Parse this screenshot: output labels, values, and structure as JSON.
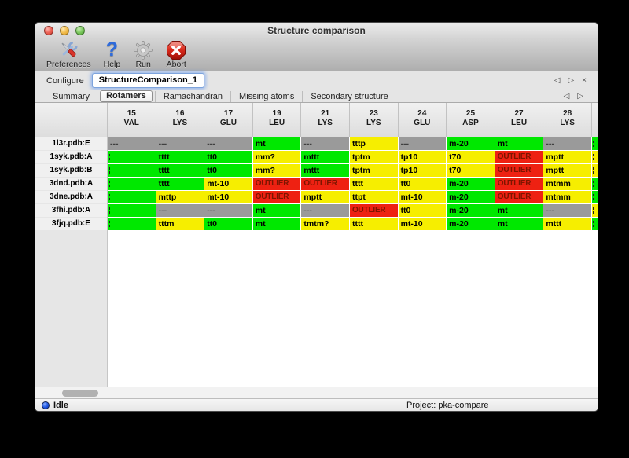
{
  "window": {
    "title": "Structure comparison"
  },
  "toolbar": {
    "items": [
      {
        "label": "Preferences",
        "icon": "preferences-tools-icon",
        "name": "preferences-button"
      },
      {
        "label": "Help",
        "icon": "help-question-icon",
        "name": "help-button"
      },
      {
        "label": "Run",
        "icon": "run-gear-icon",
        "name": "run-button"
      },
      {
        "label": "Abort",
        "icon": "abort-stop-icon",
        "name": "abort-button"
      }
    ]
  },
  "configure": {
    "label": "Configure",
    "value": "StructureComparison_1",
    "nav": {
      "prev": "◁",
      "next": "▷",
      "close": "×"
    }
  },
  "tabs": {
    "items": [
      "Summary",
      "Rotamers",
      "Ramachandran",
      "Missing atoms",
      "Secondary structure"
    ],
    "active": "Rotamers",
    "nav": {
      "prev": "◁",
      "next": "▷"
    }
  },
  "table": {
    "columns": [
      {
        "num": "15",
        "res": "VAL"
      },
      {
        "num": "16",
        "res": "LYS"
      },
      {
        "num": "17",
        "res": "GLU"
      },
      {
        "num": "19",
        "res": "LEU"
      },
      {
        "num": "21",
        "res": "LYS"
      },
      {
        "num": "23",
        "res": "LYS"
      },
      {
        "num": "24",
        "res": "GLU"
      },
      {
        "num": "25",
        "res": "ASP"
      },
      {
        "num": "27",
        "res": "LEU"
      },
      {
        "num": "28",
        "res": "LYS"
      }
    ],
    "legend": {
      "green": "#00e800",
      "yellow": "#f6ee00",
      "gray": "#9a9a9a",
      "red": "#ee2112"
    },
    "rows": [
      {
        "label": "1l3r.pdb:E",
        "cells": [
          {
            "t": "---",
            "c": "gray"
          },
          {
            "t": "---",
            "c": "gray"
          },
          {
            "t": "---",
            "c": "gray"
          },
          {
            "t": "mt",
            "c": "green"
          },
          {
            "t": "---",
            "c": "gray"
          },
          {
            "t": "tttp",
            "c": "yellow"
          },
          {
            "t": "---",
            "c": "gray"
          },
          {
            "t": "m-20",
            "c": "green"
          },
          {
            "t": "mt",
            "c": "green"
          },
          {
            "t": "---",
            "c": "gray"
          }
        ],
        "edge": {
          "t": "",
          "c": "green",
          "clip": true
        }
      },
      {
        "label": "1syk.pdb:A",
        "cells": [
          {
            "t": "",
            "c": "green",
            "clip": true
          },
          {
            "t": "tttt",
            "c": "green"
          },
          {
            "t": "tt0",
            "c": "green"
          },
          {
            "t": "mm?",
            "c": "yellow"
          },
          {
            "t": "mttt",
            "c": "green"
          },
          {
            "t": "tptm",
            "c": "yellow"
          },
          {
            "t": "tp10",
            "c": "yellow"
          },
          {
            "t": "t70",
            "c": "yellow"
          },
          {
            "t": "OUTLIER",
            "c": "red"
          },
          {
            "t": "mptt",
            "c": "yellow"
          }
        ],
        "edge": {
          "t": "",
          "c": "yellow",
          "clip": true
        }
      },
      {
        "label": "1syk.pdb:B",
        "cells": [
          {
            "t": "",
            "c": "green",
            "clip": true
          },
          {
            "t": "tttt",
            "c": "green"
          },
          {
            "t": "tt0",
            "c": "green"
          },
          {
            "t": "mm?",
            "c": "yellow"
          },
          {
            "t": "mttt",
            "c": "green"
          },
          {
            "t": "tptm",
            "c": "yellow"
          },
          {
            "t": "tp10",
            "c": "yellow"
          },
          {
            "t": "t70",
            "c": "yellow"
          },
          {
            "t": "OUTLIER",
            "c": "red"
          },
          {
            "t": "mptt",
            "c": "yellow"
          }
        ],
        "edge": {
          "t": "",
          "c": "yellow",
          "clip": true
        }
      },
      {
        "label": "3dnd.pdb:A",
        "cells": [
          {
            "t": "",
            "c": "green",
            "clip": true
          },
          {
            "t": "tttt",
            "c": "green"
          },
          {
            "t": "mt-10",
            "c": "yellow"
          },
          {
            "t": "OUTLIER",
            "c": "red"
          },
          {
            "t": "OUTLIER",
            "c": "red"
          },
          {
            "t": "tttt",
            "c": "yellow"
          },
          {
            "t": "tt0",
            "c": "yellow"
          },
          {
            "t": "m-20",
            "c": "green"
          },
          {
            "t": "OUTLIER",
            "c": "red"
          },
          {
            "t": "mtmm",
            "c": "yellow"
          }
        ],
        "edge": {
          "t": "",
          "c": "green",
          "clip": true
        }
      },
      {
        "label": "3dne.pdb:A",
        "cells": [
          {
            "t": "",
            "c": "green",
            "clip": true
          },
          {
            "t": "mttp",
            "c": "yellow"
          },
          {
            "t": "mt-10",
            "c": "yellow"
          },
          {
            "t": "OUTLIER",
            "c": "red"
          },
          {
            "t": "mptt",
            "c": "yellow"
          },
          {
            "t": "ttpt",
            "c": "yellow"
          },
          {
            "t": "mt-10",
            "c": "yellow"
          },
          {
            "t": "m-20",
            "c": "green"
          },
          {
            "t": "OUTLIER",
            "c": "red"
          },
          {
            "t": "mtmm",
            "c": "yellow"
          }
        ],
        "edge": {
          "t": "",
          "c": "green",
          "clip": true
        }
      },
      {
        "label": "3fhi.pdb:A",
        "cells": [
          {
            "t": "",
            "c": "green",
            "clip": true
          },
          {
            "t": "---",
            "c": "gray"
          },
          {
            "t": "---",
            "c": "gray"
          },
          {
            "t": "mt",
            "c": "green"
          },
          {
            "t": "---",
            "c": "gray"
          },
          {
            "t": "OUTLIER",
            "c": "red"
          },
          {
            "t": "tt0",
            "c": "yellow"
          },
          {
            "t": "m-20",
            "c": "green"
          },
          {
            "t": "mt",
            "c": "green"
          },
          {
            "t": "---",
            "c": "gray"
          }
        ],
        "edge": {
          "t": "",
          "c": "yellow",
          "clip": true
        }
      },
      {
        "label": "3fjq.pdb:E",
        "cells": [
          {
            "t": "",
            "c": "green",
            "clip": true
          },
          {
            "t": "tttm",
            "c": "yellow"
          },
          {
            "t": "tt0",
            "c": "green"
          },
          {
            "t": "mt",
            "c": "green"
          },
          {
            "t": "tmtm?",
            "c": "yellow"
          },
          {
            "t": "tttt",
            "c": "yellow"
          },
          {
            "t": "mt-10",
            "c": "yellow"
          },
          {
            "t": "m-20",
            "c": "green"
          },
          {
            "t": "mt",
            "c": "green"
          },
          {
            "t": "mttt",
            "c": "yellow"
          }
        ],
        "edge": {
          "t": "",
          "c": "green",
          "clip": true
        }
      }
    ]
  },
  "statusbar": {
    "status": "Idle",
    "project": "Project: pka-compare"
  }
}
